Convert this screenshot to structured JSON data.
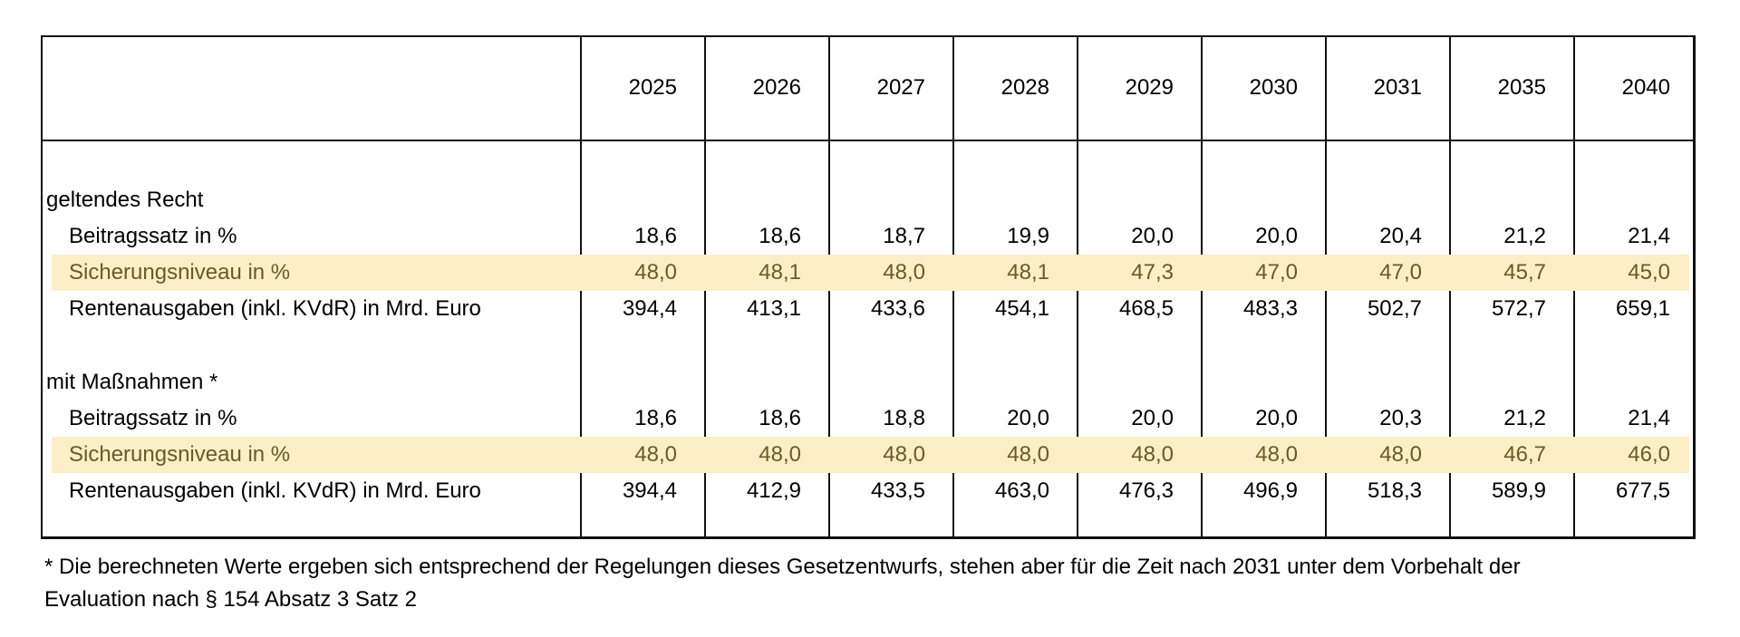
{
  "years": [
    "2025",
    "2026",
    "2027",
    "2028",
    "2029",
    "2030",
    "2031",
    "2035",
    "2040"
  ],
  "sections": [
    {
      "title": "geltendes Recht",
      "rows": [
        {
          "label": "Beitragssatz in %",
          "highlight": false,
          "values": [
            "18,6",
            "18,6",
            "18,7",
            "19,9",
            "20,0",
            "20,0",
            "20,4",
            "21,2",
            "21,4"
          ]
        },
        {
          "label": "Sicherungsniveau in %",
          "highlight": true,
          "values": [
            "48,0",
            "48,1",
            "48,0",
            "48,1",
            "47,3",
            "47,0",
            "47,0",
            "45,7",
            "45,0"
          ]
        },
        {
          "label": "Rentenausgaben (inkl. KVdR) in Mrd. Euro",
          "highlight": false,
          "values": [
            "394,4",
            "413,1",
            "433,6",
            "454,1",
            "468,5",
            "483,3",
            "502,7",
            "572,7",
            "659,1"
          ]
        }
      ]
    },
    {
      "title": "mit Maßnahmen *",
      "rows": [
        {
          "label": "Beitragssatz in %",
          "highlight": false,
          "values": [
            "18,6",
            "18,6",
            "18,8",
            "20,0",
            "20,0",
            "20,0",
            "20,3",
            "21,2",
            "21,4"
          ]
        },
        {
          "label": "Sicherungsniveau in %",
          "highlight": true,
          "values": [
            "48,0",
            "48,0",
            "48,0",
            "48,0",
            "48,0",
            "48,0",
            "48,0",
            "46,7",
            "46,0"
          ]
        },
        {
          "label": "Rentenausgaben (inkl. KVdR) in Mrd. Euro",
          "highlight": false,
          "values": [
            "394,4",
            "412,9",
            "433,5",
            "463,0",
            "476,3",
            "496,9",
            "518,3",
            "589,9",
            "677,5"
          ]
        }
      ]
    }
  ],
  "footnote": {
    "line1": "* Die berechneten Werte ergeben sich entsprechend der Regelungen dieses Gesetzentwurfs, stehen aber für die Zeit nach 2031 unter dem Vorbehalt der",
    "line2": "Evaluation nach § 154 Absatz 3 Satz 2"
  },
  "colors": {
    "highlight_background": "#fcefc7",
    "highlight_text": "#6b5a24"
  }
}
